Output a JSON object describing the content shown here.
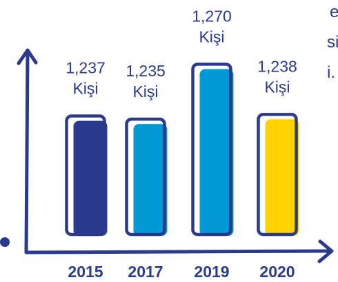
{
  "edge_fragments": [
    "e",
    "si",
    "i."
  ],
  "chart_data": {
    "type": "bar",
    "categories": [
      "2015",
      "2017",
      "2019",
      "2020"
    ],
    "values": [
      1237,
      1235,
      1270,
      1238
    ],
    "value_labels": [
      "1,237",
      "1,235",
      "1,270",
      "1,238"
    ],
    "unit": "Kişi",
    "colors": [
      "#2b3a8c",
      "#0099d6",
      "#0099d6",
      "#ffd200"
    ],
    "outline_color": "#2b3a8c",
    "axis_color": "#2b3a8c",
    "grid": false,
    "title": "",
    "xlabel": "",
    "ylabel": ""
  }
}
